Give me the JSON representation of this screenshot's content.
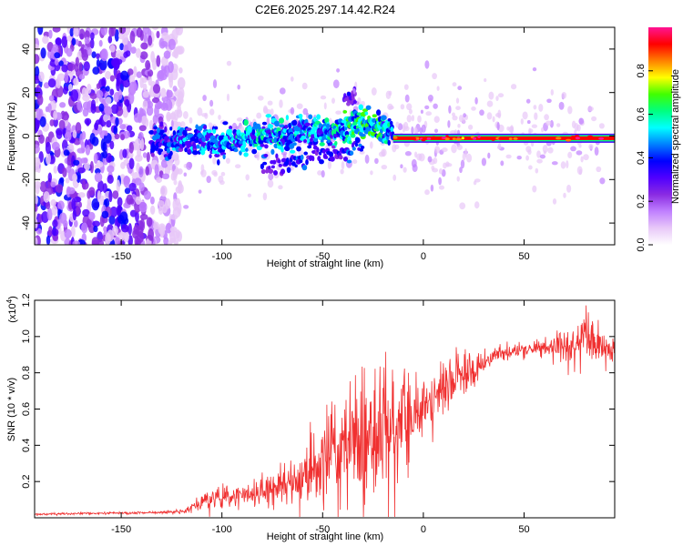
{
  "figure_title": "C2E6.2025.297.14.42.R24",
  "chart_data": [
    {
      "type": "heatmap",
      "name": "spectrogram",
      "xlabel": "Height of straight line (km)",
      "ylabel": "Frequency (Hz)",
      "xlim": [
        -193,
        95
      ],
      "ylim": [
        -50,
        50
      ],
      "xticks": [
        -150,
        -100,
        -50,
        0,
        50
      ],
      "xtick_labels": [
        "-150",
        "-100",
        "-50",
        "0",
        "50"
      ],
      "yticks": [
        -40,
        -20,
        0,
        20,
        40
      ],
      "ytick_labels": [
        "-40",
        "-20",
        "0",
        "20",
        "40"
      ],
      "colorbar": {
        "label": "Normalized spectral amplitude",
        "range": [
          0,
          1
        ],
        "ticks": [
          0.0,
          0.2,
          0.4,
          0.6,
          0.8
        ],
        "tick_labels": [
          "0.0",
          "0.2",
          "0.4",
          "0.6",
          "0.8"
        ],
        "colors": [
          "#ffffff",
          "#e8c8f8",
          "#c080ff",
          "#8a2be2",
          "#5000ff",
          "#0000ff",
          "#0080ff",
          "#00ffff",
          "#00ff80",
          "#40ff00",
          "#ffff00",
          "#ff8000",
          "#ff0000",
          "#ff1493"
        ]
      },
      "features": {
        "noise_region_x": [
          -193,
          -120
        ],
        "noise_amplitude": 0.35,
        "ridge": {
          "x": [
            -135,
            -120,
            -100,
            -80,
            -60,
            -40,
            -30,
            -20,
            -15
          ],
          "center_hz": [
            -3,
            -2,
            -3,
            0,
            2,
            3,
            5,
            3,
            0
          ],
          "amplitude": [
            0.4,
            0.45,
            0.5,
            0.55,
            0.5,
            0.6,
            0.65,
            0.6,
            0.5
          ]
        },
        "lower_branch": {
          "x": [
            -80,
            -60,
            -45,
            -30
          ],
          "center_hz": [
            -14,
            -10,
            -8,
            -4
          ],
          "amplitude": [
            0.35,
            0.4,
            0.4,
            0.45
          ]
        },
        "upper_blob": {
          "x": [
            -40,
            -34
          ],
          "center_hz": [
            17,
            19
          ],
          "amplitude": 0.3
        },
        "strong_line": {
          "x_start": -15,
          "x_end": 95,
          "center_hz": -1,
          "amplitude": 0.95
        }
      }
    },
    {
      "type": "line",
      "name": "snr",
      "xlabel": "Height of straight line (km)",
      "ylabel": "SNR (10 * v/v)",
      "yscale_label": "(x10",
      "yscale_exponent": "4",
      "yscale_suffix": ")",
      "xlim": [
        -193,
        95
      ],
      "ylim": [
        0,
        12000
      ],
      "xticks": [
        -150,
        -100,
        -50,
        0,
        50
      ],
      "xtick_labels": [
        "-150",
        "-100",
        "-50",
        "0",
        "50"
      ],
      "yticks": [
        2000,
        4000,
        6000,
        8000,
        10000,
        12000
      ],
      "ytick_labels": [
        "0.2",
        "0.4",
        "0.6",
        "0.8",
        "1.0",
        "1.2"
      ],
      "color": "#f03030",
      "x": [
        -193,
        -180,
        -160,
        -140,
        -125,
        -118,
        -110,
        -100,
        -90,
        -80,
        -70,
        -60,
        -50,
        -40,
        -30,
        -25,
        -20,
        -15,
        -10,
        -5,
        0,
        5,
        10,
        15,
        20,
        25,
        30,
        35,
        40,
        50,
        60,
        70,
        75,
        80,
        85,
        90,
        95
      ],
      "y": [
        200,
        220,
        250,
        280,
        300,
        400,
        900,
        1100,
        1200,
        1400,
        1700,
        2300,
        3100,
        3800,
        4200,
        4500,
        4800,
        5200,
        5600,
        6000,
        6300,
        6700,
        7000,
        7700,
        8000,
        8200,
        8600,
        8900,
        9100,
        9300,
        9400,
        9500,
        9600,
        10000,
        9500,
        9300,
        9200
      ],
      "noise_amplitude": [
        50,
        60,
        60,
        70,
        80,
        150,
        500,
        600,
        600,
        800,
        1000,
        1700,
        2500,
        3300,
        3800,
        4000,
        3300,
        2800,
        2300,
        1900,
        1800,
        1800,
        1800,
        1500,
        1200,
        900,
        700,
        500,
        400,
        400,
        500,
        900,
        1300,
        1600,
        1300,
        900,
        600
      ]
    }
  ]
}
